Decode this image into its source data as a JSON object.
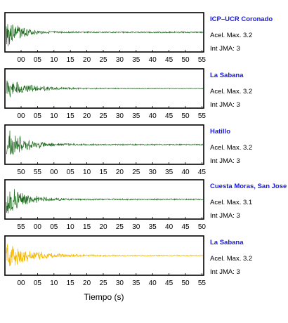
{
  "colors": {
    "link": "#1a1adb",
    "frame": "#000000"
  },
  "x_axis_title": "Tiempo (s)",
  "chart_data": [
    {
      "type": "line",
      "station": "ICP–UCR Coronado",
      "line_1": "Acel. Max. 3.2",
      "line_2": "Int JMA: 3",
      "color": "#1e6b1e",
      "tick_labels": [
        "00",
        "05",
        "10",
        "15",
        "20",
        "25",
        "30",
        "35",
        "40",
        "45",
        "50",
        "55"
      ],
      "decay": 0.16,
      "seed": 3,
      "amp": 1.0
    },
    {
      "type": "line",
      "station": "La Sabana",
      "line_1": "Acel. Max. 3.2",
      "line_2": "Int JMA: 3",
      "color": "#1e6b1e",
      "tick_labels": [
        "00",
        "05",
        "10",
        "15",
        "20",
        "25",
        "30",
        "35",
        "40",
        "45",
        "50",
        "55"
      ],
      "decay": 0.09,
      "seed": 11,
      "amp": 0.6
    },
    {
      "type": "line",
      "station": "Hatillo",
      "line_1": "Acel. Max. 3.2",
      "line_2": "Int JMA: 3",
      "color": "#1e6b1e",
      "tick_labels": [
        "50",
        "55",
        "00",
        "05",
        "10",
        "15",
        "20",
        "25",
        "30",
        "35",
        "40",
        "45"
      ],
      "decay": 0.11,
      "seed": 23,
      "amp": 0.95
    },
    {
      "type": "line",
      "station": "Cuesta Moras, San Jose",
      "line_1": "Acel. Max. 3.1",
      "line_2": "Int JMA: 3",
      "color": "#1e6b1e",
      "tick_labels": [
        "55",
        "00",
        "05",
        "10",
        "15",
        "20",
        "25",
        "30",
        "35",
        "40",
        "45",
        "50"
      ],
      "decay": 0.12,
      "seed": 37,
      "amp": 1.0
    },
    {
      "type": "line",
      "station": "La Sabana",
      "line_1": "Acel. Max. 3.2",
      "line_2": "Int JMA: 3",
      "color": "#f5b800",
      "tick_labels": [
        "00",
        "05",
        "10",
        "15",
        "20",
        "25",
        "30",
        "35",
        "40",
        "45",
        "50",
        "55"
      ],
      "decay": 0.08,
      "seed": 51,
      "amp": 0.75
    }
  ]
}
